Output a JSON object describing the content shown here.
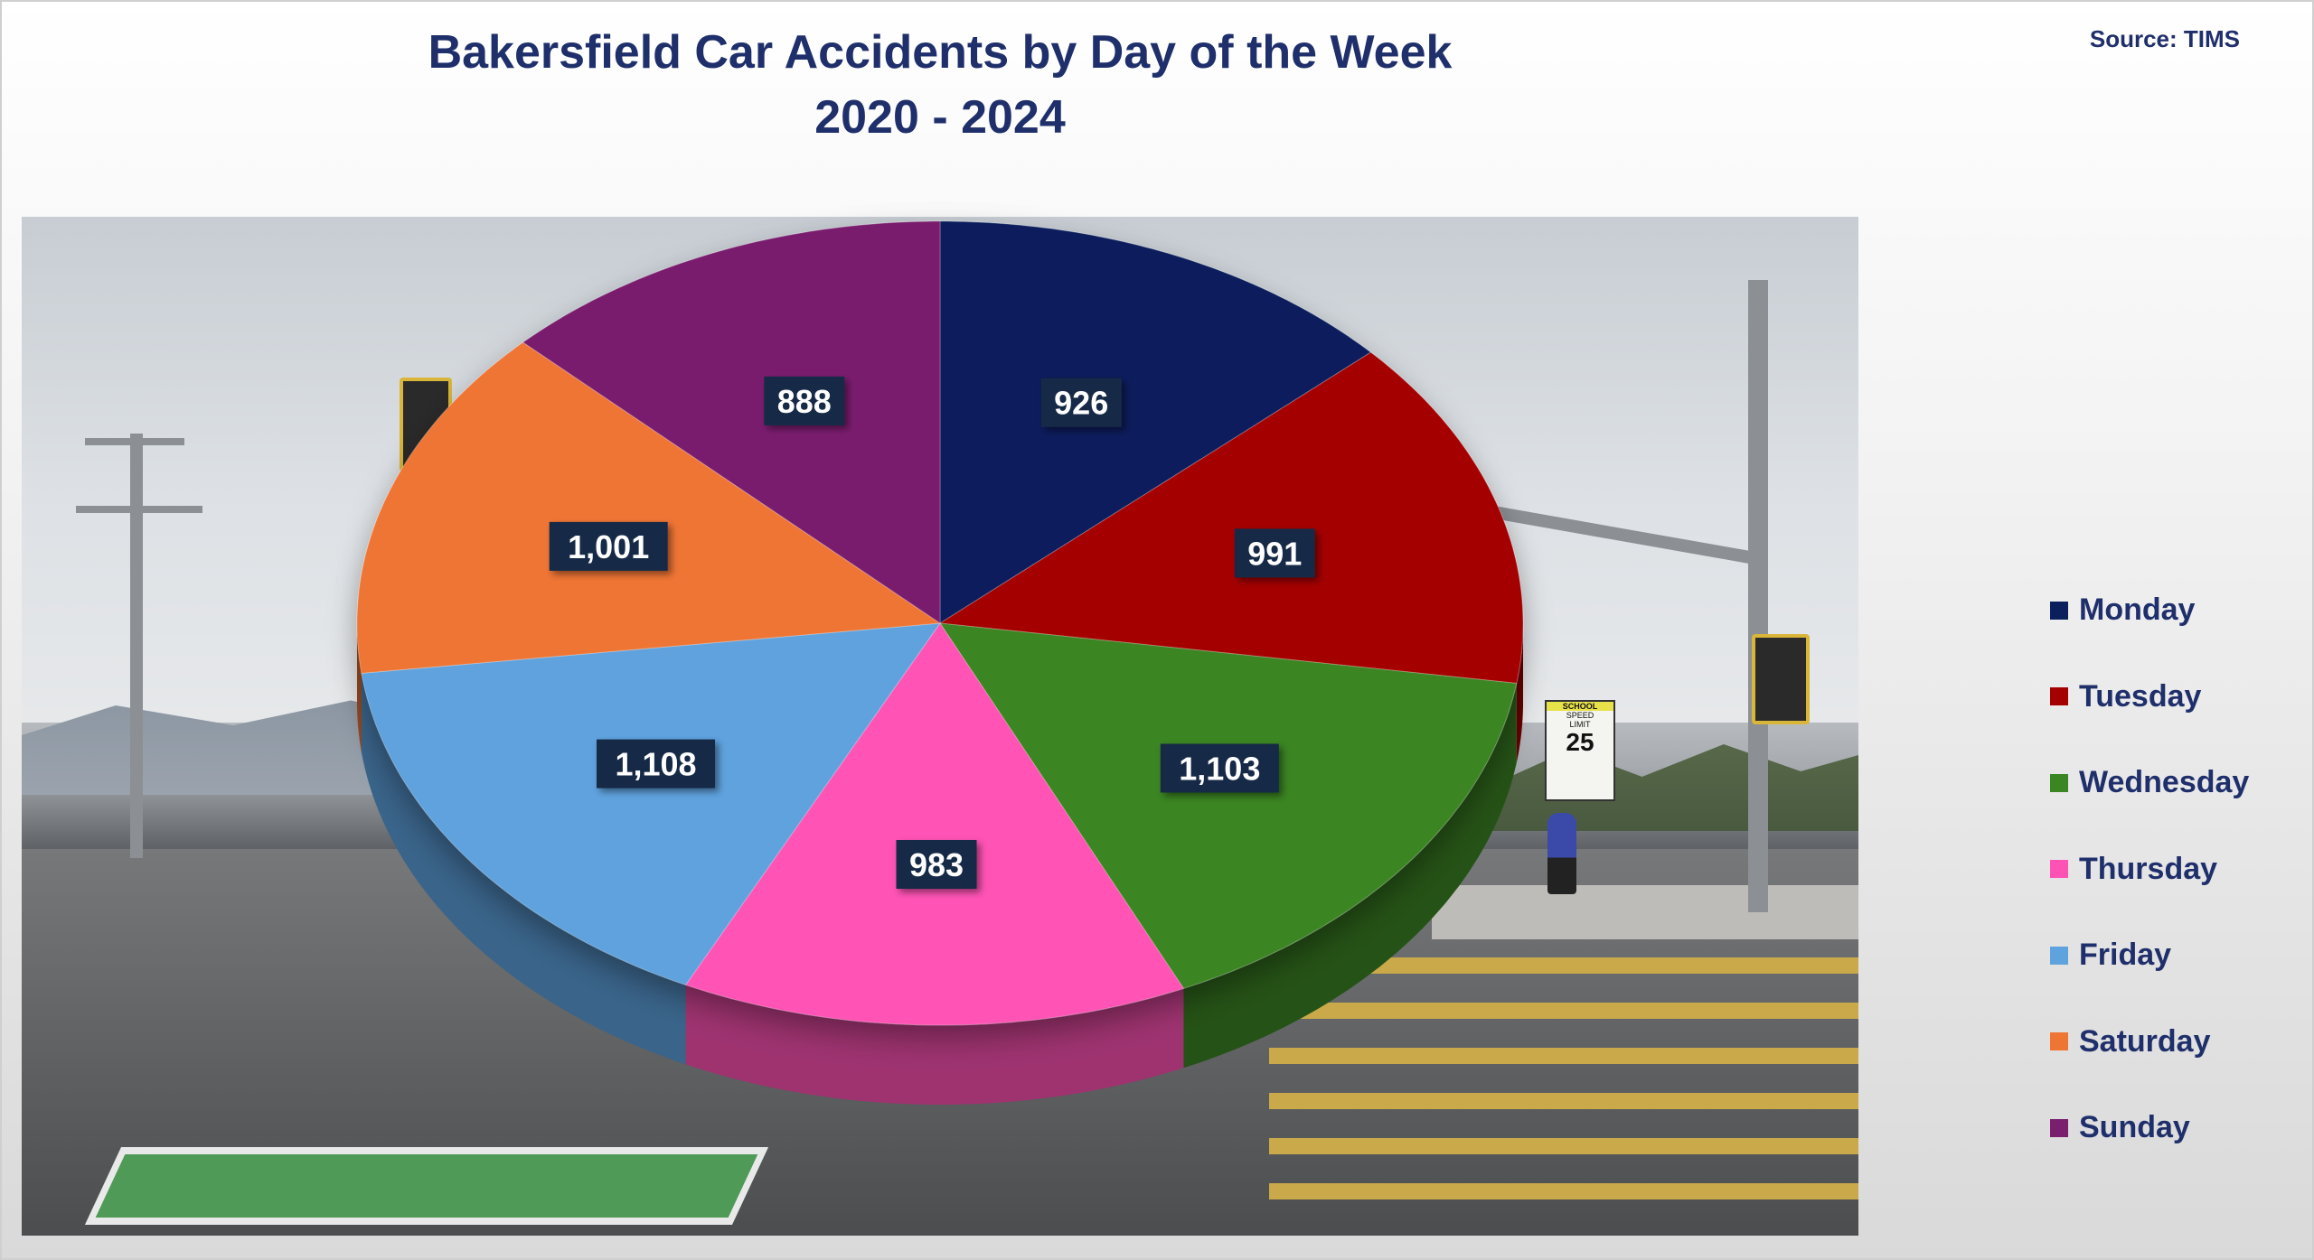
{
  "chart_data": {
    "type": "pie",
    "title": "Bakersfield Car Accidents by Day of the Week",
    "subtitle": "2020 - 2024",
    "source": "Source: TIMS",
    "legend_position": "right",
    "slices": [
      {
        "label": "Monday",
        "value": 926,
        "value_label": "926",
        "color": "#0a1f5c"
      },
      {
        "label": "Tuesday",
        "value": 991,
        "value_label": "991",
        "color": "#a50000"
      },
      {
        "label": "Wednesday",
        "value": 1103,
        "value_label": "1,103",
        "color": "#3b8523"
      },
      {
        "label": "Thursday",
        "value": 983,
        "value_label": "983",
        "color": "#ff52b5"
      },
      {
        "label": "Friday",
        "value": 1108,
        "value_label": "1,108",
        "color": "#5ea2de"
      },
      {
        "label": "Saturday",
        "value": 1001,
        "value_label": "1,001",
        "color": "#ef7535"
      },
      {
        "label": "Sunday",
        "value": 888,
        "value_label": "888",
        "color": "#7a1f6e"
      }
    ]
  }
}
